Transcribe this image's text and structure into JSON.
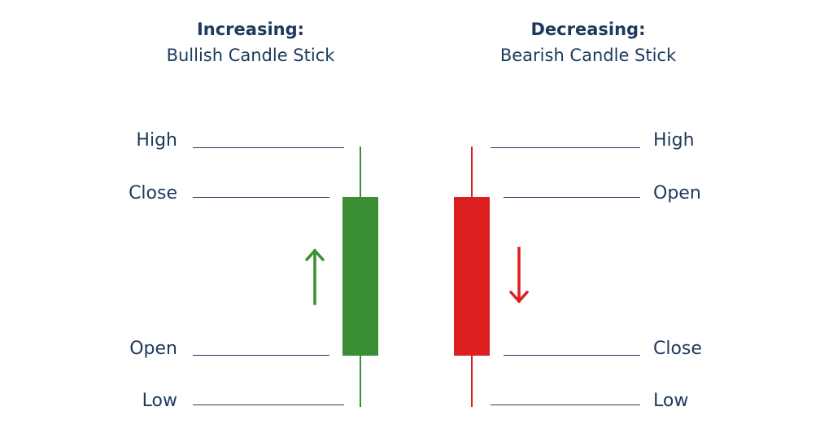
{
  "left": {
    "title_bold": "Increasing:",
    "title": "Bullish Candle Stick",
    "labels": {
      "high": "High",
      "close": "Close",
      "open": "Open",
      "low": "Low"
    },
    "color": "#3a8f34"
  },
  "right": {
    "title_bold": "Decreasing:",
    "title": "Bearish Candle Stick",
    "labels": {
      "high": "High",
      "open": "Open",
      "close": "Close",
      "low": "Low"
    },
    "color": "#dc1f1f"
  },
  "text_color": "#1d3a5c",
  "icons": {
    "left_arrow": "arrow-up-icon",
    "right_arrow": "arrow-down-icon"
  }
}
